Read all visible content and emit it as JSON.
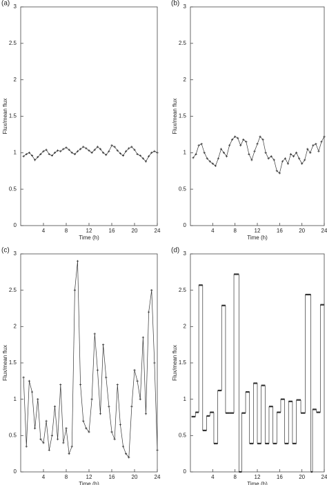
{
  "chart_data": [
    {
      "type": "line",
      "panel": "(a)",
      "xlabel": "Time (h)",
      "ylabel": "Flux/mean flux",
      "color": "#333333",
      "xlim": [
        0,
        24
      ],
      "ylim": [
        0,
        3
      ],
      "xticks": [
        4,
        8,
        12,
        16,
        20,
        24
      ],
      "yticks": [
        0,
        0.5,
        1,
        1.5,
        2,
        2.5,
        3
      ],
      "x": [
        0.5,
        1,
        1.5,
        2,
        2.5,
        3,
        3.5,
        4,
        4.5,
        5,
        5.5,
        6,
        6.5,
        7,
        7.5,
        8,
        8.5,
        9,
        9.5,
        10,
        10.5,
        11,
        11.5,
        12,
        12.5,
        13,
        13.5,
        14,
        14.5,
        15,
        15.5,
        16,
        16.5,
        17,
        17.5,
        18,
        18.5,
        19,
        19.5,
        20,
        20.5,
        21,
        21.5,
        22,
        22.5,
        23,
        23.5,
        24
      ],
      "values": [
        0.95,
        0.98,
        1.0,
        0.96,
        0.9,
        0.94,
        0.98,
        1.02,
        1.04,
        0.98,
        0.96,
        1.0,
        1.03,
        1.02,
        1.05,
        1.07,
        1.04,
        1.0,
        0.98,
        1.02,
        1.05,
        1.08,
        1.06,
        1.03,
        1.0,
        1.04,
        1.08,
        1.05,
        1.0,
        0.97,
        1.02,
        1.1,
        1.08,
        1.03,
        0.99,
        0.96,
        1.02,
        1.06,
        1.08,
        1.04,
        0.98,
        0.96,
        0.92,
        0.88,
        0.95,
        1.0,
        1.02,
        1.0
      ]
    },
    {
      "type": "line",
      "panel": "(b)",
      "xlabel": "Time (h)",
      "ylabel": "Flux/mean flux",
      "color": "#333333",
      "xlim": [
        0,
        24
      ],
      "ylim": [
        0,
        3
      ],
      "xticks": [
        4,
        8,
        12,
        16,
        20,
        24
      ],
      "yticks": [
        0,
        0.5,
        1,
        1.5,
        2,
        2.5,
        3
      ],
      "x": [
        0.5,
        1,
        1.5,
        2,
        2.5,
        3,
        3.5,
        4,
        4.5,
        5,
        5.5,
        6,
        6.5,
        7,
        7.5,
        8,
        8.5,
        9,
        9.5,
        10,
        10.5,
        11,
        11.5,
        12,
        12.5,
        13,
        13.5,
        14,
        14.5,
        15,
        15.5,
        16,
        16.5,
        17,
        17.5,
        18,
        18.5,
        19,
        19.5,
        20,
        20.5,
        21,
        21.5,
        22,
        22.5,
        23,
        23.5,
        24
      ],
      "values": [
        0.93,
        0.98,
        1.1,
        1.12,
        1.0,
        0.92,
        0.88,
        0.85,
        0.82,
        0.92,
        1.05,
        1.0,
        0.95,
        1.1,
        1.18,
        1.22,
        1.2,
        1.1,
        1.18,
        1.15,
        0.98,
        0.9,
        1.02,
        1.12,
        1.22,
        1.18,
        1.0,
        0.92,
        0.95,
        0.9,
        0.75,
        0.72,
        0.88,
        0.92,
        0.85,
        0.98,
        0.95,
        1.0,
        0.92,
        0.85,
        0.9,
        1.05,
        1.0,
        1.1,
        1.12,
        1.02,
        1.15,
        1.22
      ]
    },
    {
      "type": "line",
      "panel": "(c)",
      "xlabel": "Time (h)",
      "ylabel": "Flux/mean flux",
      "color": "#333333",
      "xlim": [
        0,
        24
      ],
      "ylim": [
        0,
        3
      ],
      "xticks": [
        4,
        8,
        12,
        16,
        20,
        24
      ],
      "yticks": [
        0,
        0.5,
        1,
        1.5,
        2,
        2.5,
        3
      ],
      "x": [
        0.5,
        1,
        1.5,
        2,
        2.5,
        3,
        3.5,
        4,
        4.5,
        5,
        5.5,
        6,
        6.5,
        7,
        7.5,
        8,
        8.5,
        9,
        9.5,
        10,
        10.5,
        11,
        11.5,
        12,
        12.5,
        13,
        13.5,
        14,
        14.5,
        15,
        15.5,
        16,
        16.5,
        17,
        17.5,
        18,
        18.5,
        19,
        19.5,
        20,
        20.5,
        21,
        21.5,
        22,
        22.5,
        23,
        23.5,
        24
      ],
      "values": [
        1.3,
        0.35,
        1.25,
        1.1,
        0.6,
        1.0,
        0.45,
        0.4,
        0.7,
        0.3,
        0.5,
        0.9,
        0.45,
        1.2,
        0.4,
        0.6,
        0.25,
        0.35,
        2.5,
        2.9,
        1.2,
        0.7,
        0.6,
        0.55,
        1.0,
        1.9,
        1.4,
        0.8,
        1.75,
        1.3,
        0.9,
        0.55,
        0.45,
        1.2,
        0.65,
        0.35,
        0.25,
        0.2,
        0.9,
        1.4,
        1.25,
        1.0,
        1.85,
        0.8,
        2.2,
        2.5,
        1.5,
        0.3
      ]
    },
    {
      "type": "step",
      "panel": "(d)",
      "xlabel": "Time (h)",
      "ylabel": "Flux/mean flux",
      "color": "#333333",
      "xlim": [
        0,
        24
      ],
      "ylim": [
        0,
        3
      ],
      "xticks": [
        4,
        8,
        12,
        16,
        20,
        24
      ],
      "yticks": [
        0,
        0.5,
        1,
        1.5,
        2,
        2.5,
        3
      ],
      "x": [
        0.2,
        0.9,
        1.5,
        2.2,
        2.9,
        3.5,
        4.2,
        4.9,
        5.6,
        6.3,
        7.0,
        7.8,
        8.7,
        9.2,
        9.9,
        10.6,
        11.3,
        12.0,
        12.7,
        13.4,
        14.1,
        14.8,
        15.5,
        16.2,
        16.9,
        17.6,
        18.3,
        19.0,
        19.8,
        20.6,
        21.6,
        21.9,
        22.6,
        23.3
      ],
      "values": [
        0.76,
        0.82,
        2.57,
        0.57,
        0.77,
        0.82,
        0.39,
        1.12,
        2.29,
        0.81,
        0.81,
        2.72,
        0,
        0.81,
        1.1,
        0.39,
        1.22,
        0.39,
        1.19,
        0.39,
        0.9,
        0.39,
        0.82,
        1.0,
        0.39,
        0.97,
        0.39,
        0.99,
        0.81,
        2.44,
        0,
        0.86,
        0.82,
        2.3
      ]
    }
  ]
}
